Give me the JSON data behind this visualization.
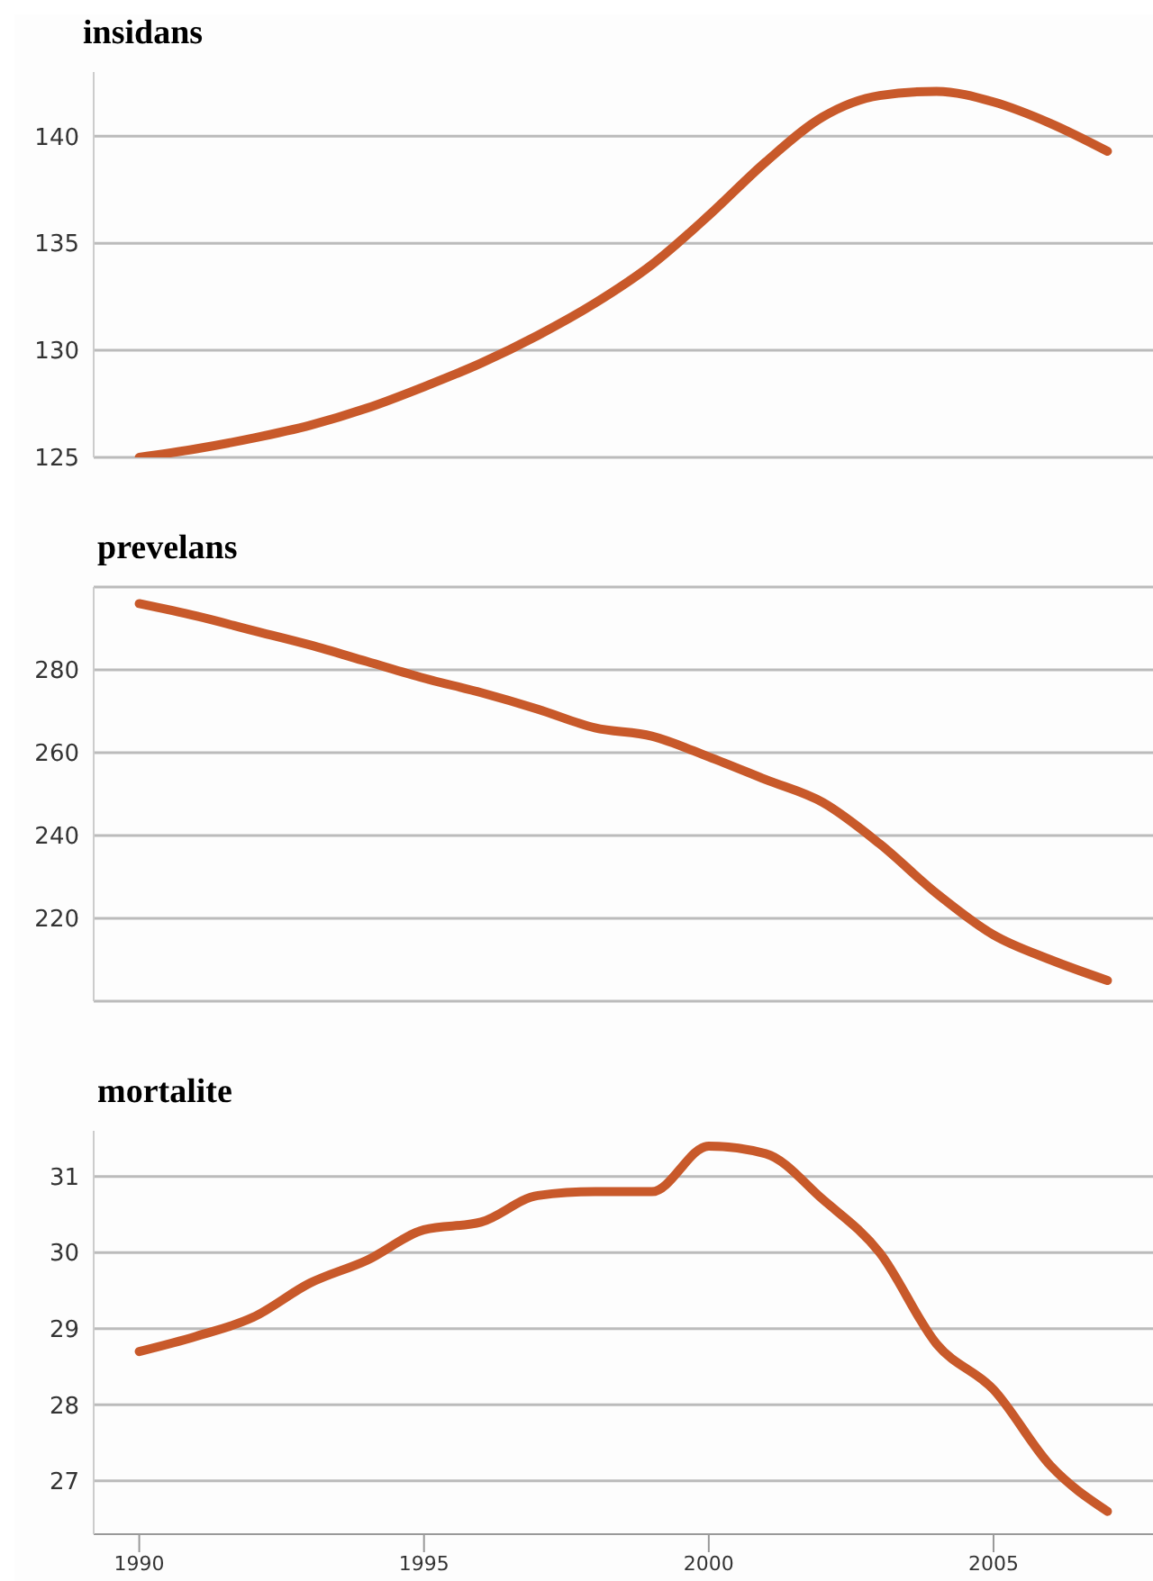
{
  "chart_data": [
    {
      "type": "line",
      "title": "insidans",
      "x": [
        1990,
        1991,
        1992,
        1993,
        1994,
        1995,
        1996,
        1997,
        1998,
        1999,
        2000,
        2001,
        2002,
        2003,
        2004,
        2005,
        2006,
        2007
      ],
      "series": [
        {
          "color": "#c8592a",
          "values": [
            125.0,
            125.4,
            125.9,
            126.5,
            127.3,
            128.3,
            129.4,
            130.7,
            132.2,
            134.0,
            136.3,
            138.8,
            140.9,
            141.9,
            142.1,
            141.6,
            140.6,
            139.3
          ]
        }
      ],
      "xlim": [
        1989.2,
        2007.8
      ],
      "xticks": [
        1990,
        1995,
        2000,
        2005
      ],
      "ylim": [
        125,
        143
      ],
      "yticks": [
        125,
        130,
        135,
        140
      ],
      "grid": "y",
      "tick_labels": "y",
      "marker": "none",
      "line_style": "solid",
      "legend": false
    },
    {
      "type": "line",
      "title": "prevelans",
      "x": [
        1990,
        1991,
        1992,
        1993,
        1994,
        1995,
        1996,
        1997,
        1998,
        1999,
        2000,
        2001,
        2002,
        2003,
        2004,
        2005,
        2006,
        2007
      ],
      "series": [
        {
          "color": "#c8592a",
          "values": [
            296,
            293,
            289.5,
            286,
            282,
            278,
            274.5,
            270.5,
            266,
            264,
            259,
            253.5,
            248,
            238,
            226,
            216,
            210,
            205
          ]
        }
      ],
      "xlim": [
        1989.2,
        2007.8
      ],
      "xticks": [
        1990,
        1995,
        2000,
        2005
      ],
      "ylim": [
        200,
        300
      ],
      "yticks": [
        {
          "value": 200,
          "label": null
        },
        220,
        240,
        260,
        280,
        {
          "value": 300,
          "label": null
        }
      ],
      "grid": "y",
      "tick_labels": "y",
      "marker": "none",
      "line_style": "solid",
      "legend": false
    },
    {
      "type": "line",
      "title": "mortalite",
      "x": [
        1990,
        1991,
        1992,
        1993,
        1994,
        1995,
        1996,
        1997,
        1998,
        1999,
        2000,
        2001,
        2002,
        2003,
        2004,
        2005,
        2006,
        2007
      ],
      "series": [
        {
          "color": "#c8592a",
          "values": [
            28.7,
            28.9,
            29.15,
            29.6,
            29.9,
            30.3,
            30.4,
            30.75,
            30.8,
            30.8,
            31.4,
            31.3,
            30.7,
            30.0,
            28.8,
            28.2,
            27.2,
            26.6
          ]
        }
      ],
      "xlim": [
        1989.2,
        2007.8
      ],
      "xticks": [
        1990,
        1995,
        2000,
        2005
      ],
      "ylim": [
        26.3,
        31.6
      ],
      "yticks": [
        27,
        28,
        29,
        30,
        31
      ],
      "grid": "y",
      "marker": "none",
      "line_style": "solid",
      "legend": false
    }
  ]
}
